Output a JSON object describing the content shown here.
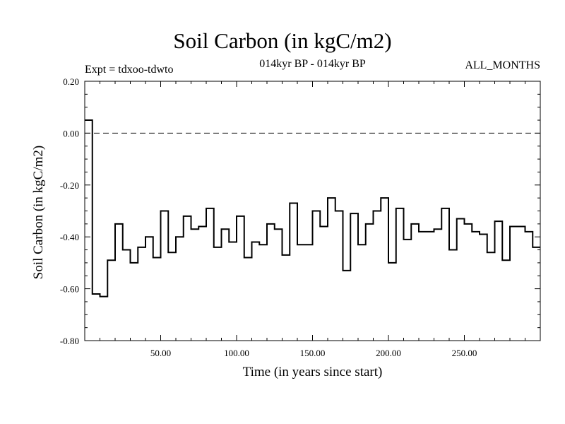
{
  "chart_data": {
    "type": "line",
    "title": "Soil Carbon (in kgC/m2)",
    "header_left": "Expt = tdxoo-tdwto",
    "header_center": "014kyr BP - 014kyr BP",
    "header_right": "ALL_MONTHS",
    "xlabel": "Time (in years since start)",
    "ylabel": "Soil Carbon (in kgC/m2)",
    "xlim": [
      0,
      300
    ],
    "ylim": [
      -0.8,
      0.2
    ],
    "x_ticks": [
      50,
      100,
      150,
      200,
      250
    ],
    "x_tick_labels": [
      "50.00",
      "100.00",
      "150.00",
      "200.00",
      "250.00"
    ],
    "y_ticks": [
      0.2,
      0.0,
      -0.2,
      -0.4,
      -0.6,
      -0.8
    ],
    "y_tick_labels": [
      "0.20",
      "0.00",
      "-0.20",
      "-0.40",
      "-0.60",
      "-0.80"
    ],
    "reference_line": 0.0,
    "grid": false,
    "series": [
      {
        "style": "step",
        "x": [
          0,
          5,
          10,
          15,
          20,
          25,
          30,
          35,
          40,
          45,
          50,
          55,
          60,
          65,
          70,
          75,
          80,
          85,
          90,
          95,
          100,
          105,
          110,
          115,
          120,
          125,
          130,
          135,
          140,
          145,
          150,
          155,
          160,
          165,
          170,
          175,
          180,
          185,
          190,
          195,
          200,
          205,
          210,
          215,
          220,
          225,
          230,
          235,
          240,
          245,
          250,
          255,
          260,
          265,
          270,
          275,
          280,
          285,
          290,
          295,
          300
        ],
        "values": [
          0.05,
          -0.62,
          -0.63,
          -0.49,
          -0.35,
          -0.45,
          -0.5,
          -0.44,
          -0.4,
          -0.48,
          -0.3,
          -0.46,
          -0.4,
          -0.32,
          -0.37,
          -0.36,
          -0.29,
          -0.44,
          -0.37,
          -0.42,
          -0.32,
          -0.48,
          -0.42,
          -0.43,
          -0.35,
          -0.37,
          -0.47,
          -0.27,
          -0.43,
          -0.43,
          -0.3,
          -0.36,
          -0.25,
          -0.3,
          -0.53,
          -0.31,
          -0.43,
          -0.35,
          -0.3,
          -0.25,
          -0.5,
          -0.29,
          -0.41,
          -0.35,
          -0.38,
          -0.38,
          -0.37,
          -0.29,
          -0.45,
          -0.33,
          -0.35,
          -0.38,
          -0.39,
          -0.46,
          -0.34,
          -0.49,
          -0.36,
          -0.36,
          -0.38,
          -0.44,
          -0.44
        ]
      }
    ]
  }
}
